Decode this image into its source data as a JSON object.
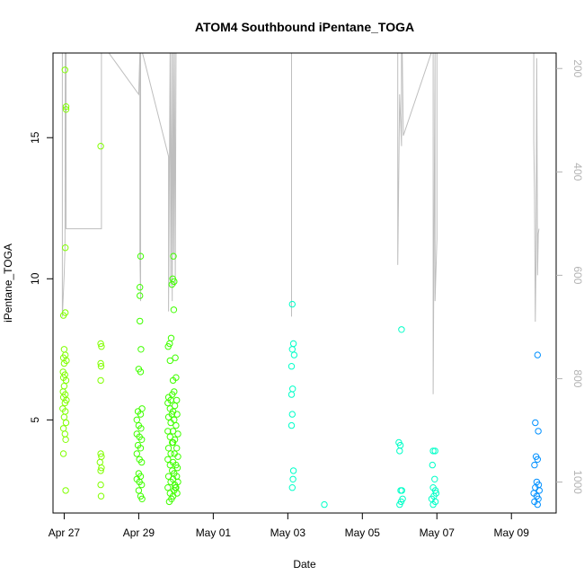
{
  "chart_data": {
    "type": "scatter",
    "title": "ATOM4 Southbound iPentane_TOGA",
    "xlabel": "Date",
    "ylabel": "iPentane_TOGA",
    "x_ticks": [
      {
        "value": 0,
        "label": "Apr 27"
      },
      {
        "value": 2,
        "label": "Apr 29"
      },
      {
        "value": 4,
        "label": "May 01"
      },
      {
        "value": 6,
        "label": "May 03"
      },
      {
        "value": 8,
        "label": "May 05"
      },
      {
        "value": 10,
        "label": "May 07"
      },
      {
        "value": 12,
        "label": "May 09"
      }
    ],
    "xlim": [
      -0.3,
      13.2
    ],
    "y_ticks": [
      5,
      10,
      15
    ],
    "ylim": [
      1.7,
      18
    ],
    "y2_ticks": [
      200,
      400,
      600,
      800,
      1000
    ],
    "y2lim": [
      1060,
      170
    ],
    "colors": {
      "early": "#80ff00",
      "mid": "#40ff00",
      "late": "#00ffc8",
      "last": "#0090ff",
      "trace": "#bebebe",
      "y2_axis": "#b3b3b3"
    },
    "series": [
      {
        "color": "#80ff00",
        "points": [
          [
            0.02,
            17.4
          ],
          [
            0.05,
            16.1
          ],
          [
            0.05,
            16.0
          ],
          [
            0.03,
            11.1
          ],
          [
            0.03,
            8.8
          ],
          [
            -0.02,
            8.7
          ],
          [
            0.0,
            7.5
          ],
          [
            0.03,
            7.3
          ],
          [
            -0.02,
            7.2
          ],
          [
            0.06,
            7.1
          ],
          [
            0.0,
            7.0
          ],
          [
            -0.03,
            6.7
          ],
          [
            0.02,
            6.6
          ],
          [
            -0.02,
            6.5
          ],
          [
            0.05,
            6.4
          ],
          [
            0.0,
            6.2
          ],
          [
            -0.03,
            6.0
          ],
          [
            0.03,
            5.9
          ],
          [
            0.06,
            5.7
          ],
          [
            -0.02,
            5.8
          ],
          [
            0.02,
            5.6
          ],
          [
            -0.04,
            5.4
          ],
          [
            0.03,
            5.3
          ],
          [
            0.0,
            5.1
          ],
          [
            0.05,
            4.9
          ],
          [
            -0.02,
            4.7
          ],
          [
            0.02,
            4.5
          ],
          [
            0.04,
            4.3
          ],
          [
            -0.02,
            3.8
          ],
          [
            0.04,
            2.5
          ],
          [
            0.98,
            14.7
          ],
          [
            0.98,
            7.7
          ],
          [
            1.0,
            7.6
          ],
          [
            0.98,
            7.0
          ],
          [
            0.99,
            6.9
          ],
          [
            0.98,
            6.4
          ],
          [
            0.98,
            3.8
          ],
          [
            1.0,
            3.7
          ],
          [
            0.96,
            3.5
          ],
          [
            1.0,
            3.3
          ],
          [
            0.98,
            3.2
          ],
          [
            0.98,
            2.7
          ],
          [
            0.99,
            2.3
          ]
        ]
      },
      {
        "color": "#40ff00",
        "points": [
          [
            2.05,
            10.8
          ],
          [
            2.03,
            9.7
          ],
          [
            2.03,
            9.4
          ],
          [
            2.03,
            8.5
          ],
          [
            2.06,
            7.5
          ],
          [
            2.0,
            6.8
          ],
          [
            2.05,
            6.7
          ],
          [
            1.98,
            5.3
          ],
          [
            2.05,
            5.2
          ],
          [
            2.09,
            5.4
          ],
          [
            1.95,
            5.0
          ],
          [
            2.0,
            4.8
          ],
          [
            2.06,
            4.7
          ],
          [
            1.95,
            4.5
          ],
          [
            2.02,
            4.4
          ],
          [
            2.08,
            4.3
          ],
          [
            1.98,
            4.1
          ],
          [
            2.05,
            4.0
          ],
          [
            1.95,
            3.8
          ],
          [
            2.02,
            3.6
          ],
          [
            2.08,
            3.5
          ],
          [
            2.0,
            3.1
          ],
          [
            2.05,
            3.0
          ],
          [
            1.95,
            2.9
          ],
          [
            2.02,
            2.8
          ],
          [
            2.08,
            2.7
          ],
          [
            2.0,
            2.5
          ],
          [
            2.05,
            2.3
          ],
          [
            2.09,
            2.2
          ],
          [
            2.87,
            7.9
          ],
          [
            2.83,
            7.7
          ],
          [
            2.79,
            7.6
          ],
          [
            2.84,
            7.1
          ],
          [
            2.8,
            5.8
          ],
          [
            2.86,
            5.7
          ],
          [
            2.78,
            5.6
          ],
          [
            2.84,
            5.4
          ],
          [
            2.89,
            5.2
          ],
          [
            2.8,
            5.1
          ],
          [
            2.86,
            4.9
          ],
          [
            2.78,
            4.6
          ],
          [
            2.84,
            4.4
          ],
          [
            2.9,
            4.2
          ],
          [
            2.8,
            4.0
          ],
          [
            2.86,
            3.8
          ],
          [
            2.78,
            3.6
          ],
          [
            2.84,
            3.4
          ],
          [
            2.9,
            3.2
          ],
          [
            2.8,
            3.0
          ],
          [
            2.86,
            2.8
          ],
          [
            2.78,
            2.6
          ],
          [
            2.84,
            2.4
          ],
          [
            2.88,
            2.2
          ],
          [
            2.82,
            2.1
          ],
          [
            2.93,
            10.8
          ],
          [
            2.91,
            10.0
          ],
          [
            2.95,
            9.9
          ],
          [
            2.89,
            9.8
          ],
          [
            2.94,
            8.9
          ],
          [
            2.98,
            7.2
          ],
          [
            2.92,
            6.4
          ],
          [
            3.0,
            6.5
          ],
          [
            2.95,
            6.0
          ],
          [
            2.9,
            5.9
          ],
          [
            3.02,
            5.7
          ],
          [
            2.97,
            5.5
          ],
          [
            2.92,
            5.3
          ],
          [
            3.03,
            5.2
          ],
          [
            2.95,
            5.0
          ],
          [
            3.0,
            4.8
          ],
          [
            2.92,
            4.6
          ],
          [
            3.05,
            4.5
          ],
          [
            2.97,
            4.3
          ],
          [
            2.92,
            4.2
          ],
          [
            3.02,
            4.0
          ],
          [
            2.96,
            3.8
          ],
          [
            3.05,
            3.7
          ],
          [
            2.92,
            3.5
          ],
          [
            3.0,
            3.4
          ],
          [
            3.04,
            3.3
          ],
          [
            2.95,
            3.1
          ],
          [
            3.02,
            3.0
          ],
          [
            2.92,
            2.9
          ],
          [
            3.05,
            2.8
          ],
          [
            2.97,
            2.7
          ],
          [
            3.0,
            2.6
          ],
          [
            2.95,
            2.5
          ],
          [
            3.03,
            2.4
          ],
          [
            2.92,
            2.3
          ],
          [
            2.98,
            2.6
          ]
        ]
      },
      {
        "color": "#00ffc8",
        "points": [
          [
            6.12,
            9.1
          ],
          [
            6.15,
            7.7
          ],
          [
            6.12,
            7.5
          ],
          [
            6.17,
            7.3
          ],
          [
            6.1,
            6.9
          ],
          [
            6.13,
            6.1
          ],
          [
            6.1,
            5.9
          ],
          [
            6.12,
            5.2
          ],
          [
            6.1,
            4.8
          ],
          [
            6.15,
            3.2
          ],
          [
            6.14,
            2.9
          ],
          [
            6.12,
            2.6
          ],
          [
            6.98,
            2.0
          ],
          [
            9.05,
            8.2
          ],
          [
            8.98,
            4.2
          ],
          [
            9.02,
            4.1
          ],
          [
            9.0,
            3.9
          ],
          [
            9.03,
            2.5
          ],
          [
            9.06,
            2.5
          ],
          [
            9.08,
            2.2
          ],
          [
            9.04,
            2.1
          ],
          [
            9.0,
            2.0
          ],
          [
            9.9,
            3.9
          ],
          [
            9.95,
            3.9
          ],
          [
            9.88,
            3.4
          ],
          [
            9.94,
            2.9
          ],
          [
            9.9,
            2.6
          ],
          [
            9.96,
            2.5
          ],
          [
            9.98,
            2.4
          ],
          [
            9.92,
            2.3
          ],
          [
            9.86,
            2.2
          ],
          [
            9.96,
            2.1
          ],
          [
            9.9,
            2.0
          ]
        ]
      },
      {
        "color": "#0090ff",
        "points": [
          [
            12.7,
            7.3
          ],
          [
            12.64,
            4.9
          ],
          [
            12.72,
            4.6
          ],
          [
            12.66,
            3.7
          ],
          [
            12.7,
            3.6
          ],
          [
            12.62,
            3.4
          ],
          [
            12.68,
            2.8
          ],
          [
            12.73,
            2.7
          ],
          [
            12.64,
            2.6
          ],
          [
            12.75,
            2.5
          ],
          [
            12.6,
            2.4
          ],
          [
            12.68,
            2.3
          ],
          [
            12.72,
            2.2
          ],
          [
            12.62,
            2.1
          ],
          [
            12.7,
            2.0
          ]
        ]
      }
    ],
    "trace_secondary_axis": [
      [
        -0.05,
        170
      ],
      [
        -0.05,
        680
      ],
      [
        0.0,
        600
      ],
      [
        0.02,
        550
      ],
      [
        0.03,
        170
      ],
      [
        0.05,
        170
      ],
      [
        0.05,
        510
      ],
      [
        1.0,
        510
      ],
      [
        1.0,
        170
      ],
      [
        1.2,
        170
      ],
      [
        2.0,
        250
      ],
      [
        2.03,
        170
      ],
      [
        2.03,
        550
      ],
      [
        2.05,
        650
      ],
      [
        2.05,
        170
      ],
      [
        2.1,
        170
      ],
      [
        2.8,
        370
      ],
      [
        2.8,
        670
      ],
      [
        2.84,
        170
      ],
      [
        2.86,
        620
      ],
      [
        2.88,
        170
      ],
      [
        2.9,
        650
      ],
      [
        2.92,
        170
      ],
      [
        2.94,
        560
      ],
      [
        2.96,
        170
      ],
      [
        2.98,
        620
      ],
      [
        3.0,
        170
      ],
      [
        3.05,
        170
      ],
      [
        3.1,
        170
      ],
      [
        6.05,
        170
      ],
      [
        6.1,
        170
      ],
      [
        6.1,
        680
      ],
      [
        6.1,
        170
      ],
      [
        7.0,
        170
      ],
      [
        8.8,
        170
      ],
      [
        8.95,
        170
      ],
      [
        8.95,
        580
      ],
      [
        9.0,
        250
      ],
      [
        9.05,
        350
      ],
      [
        9.05,
        170
      ],
      [
        9.07,
        170
      ],
      [
        9.1,
        330
      ],
      [
        9.85,
        170
      ],
      [
        9.9,
        170
      ],
      [
        9.9,
        830
      ],
      [
        9.95,
        170
      ],
      [
        9.95,
        650
      ],
      [
        10.0,
        530
      ],
      [
        10.0,
        170
      ],
      [
        11.8,
        170
      ],
      [
        12.05,
        170
      ],
      [
        12.6,
        170
      ],
      [
        12.6,
        340
      ],
      [
        12.62,
        440
      ],
      [
        12.64,
        690
      ],
      [
        12.66,
        570
      ],
      [
        12.68,
        180
      ],
      [
        12.7,
        600
      ],
      [
        12.72,
        520
      ],
      [
        12.74,
        510
      ]
    ]
  }
}
